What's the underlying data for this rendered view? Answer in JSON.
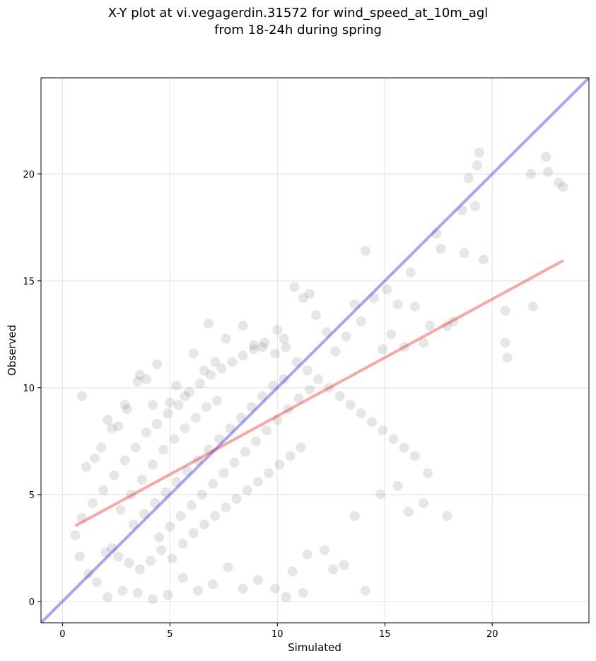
{
  "chart_data": {
    "type": "scatter",
    "title": "X-Y plot at vi.vegagerdin.31572 for wind_speed_at_10m_agl",
    "subtitle": "from 18-24h during spring",
    "xlabel": "Simulated",
    "ylabel": "Observed",
    "xlim": [
      -1,
      24.5
    ],
    "ylim": [
      -1,
      24.5
    ],
    "xticks": [
      0,
      5,
      10,
      15,
      20
    ],
    "yticks": [
      0,
      5,
      10,
      15,
      20
    ],
    "grid": true,
    "point_color": "#333333",
    "points": [
      [
        0.9,
        9.6
      ],
      [
        1.1,
        6.3
      ],
      [
        1.5,
        6.7
      ],
      [
        1.8,
        7.2
      ],
      [
        2.1,
        8.5
      ],
      [
        2.3,
        8.1
      ],
      [
        2.6,
        8.2
      ],
      [
        2.9,
        9.2
      ],
      [
        3.0,
        9.0
      ],
      [
        3.5,
        10.3
      ],
      [
        3.6,
        10.6
      ],
      [
        3.9,
        10.4
      ],
      [
        4.2,
        9.2
      ],
      [
        4.4,
        11.1
      ],
      [
        5.0,
        9.3
      ],
      [
        5.3,
        10.1
      ],
      [
        5.7,
        9.6
      ],
      [
        6.1,
        11.6
      ],
      [
        6.6,
        10.8
      ],
      [
        6.8,
        13.0
      ],
      [
        7.1,
        11.2
      ],
      [
        7.6,
        12.3
      ],
      [
        8.4,
        12.9
      ],
      [
        8.9,
        12.0
      ],
      [
        9.3,
        11.9
      ],
      [
        10.0,
        12.7
      ],
      [
        10.3,
        12.3
      ],
      [
        10.8,
        14.7
      ],
      [
        11.2,
        14.2
      ],
      [
        11.5,
        14.4
      ],
      [
        11.8,
        13.4
      ],
      [
        12.3,
        12.6
      ],
      [
        12.7,
        11.7
      ],
      [
        13.2,
        12.4
      ],
      [
        13.6,
        13.9
      ],
      [
        13.9,
        13.1
      ],
      [
        14.1,
        16.4
      ],
      [
        14.5,
        14.2
      ],
      [
        14.9,
        11.8
      ],
      [
        15.1,
        14.6
      ],
      [
        15.3,
        12.5
      ],
      [
        15.6,
        13.9
      ],
      [
        15.9,
        11.9
      ],
      [
        16.2,
        15.4
      ],
      [
        16.4,
        13.8
      ],
      [
        16.8,
        12.1
      ],
      [
        17.1,
        12.9
      ],
      [
        17.4,
        17.2
      ],
      [
        17.6,
        16.5
      ],
      [
        17.9,
        12.9
      ],
      [
        18.2,
        13.1
      ],
      [
        18.6,
        18.3
      ],
      [
        18.7,
        16.3
      ],
      [
        18.9,
        19.8
      ],
      [
        19.2,
        18.5
      ],
      [
        19.3,
        20.4
      ],
      [
        19.4,
        21.0
      ],
      [
        19.6,
        16.0
      ],
      [
        20.6,
        13.6
      ],
      [
        20.6,
        12.1
      ],
      [
        20.7,
        11.4
      ],
      [
        21.8,
        20.0
      ],
      [
        21.9,
        13.8
      ],
      [
        22.5,
        20.8
      ],
      [
        22.6,
        20.1
      ],
      [
        23.1,
        19.6
      ],
      [
        23.3,
        19.4
      ],
      [
        14.1,
        0.5
      ],
      [
        11.2,
        0.4
      ],
      [
        10.4,
        0.2
      ],
      [
        16.1,
        4.2
      ],
      [
        17.0,
        6.0
      ],
      [
        17.9,
        4.0
      ],
      [
        16.8,
        4.6
      ],
      [
        15.6,
        5.4
      ],
      [
        14.8,
        5.0
      ],
      [
        13.6,
        4.0
      ],
      [
        13.1,
        1.7
      ],
      [
        12.6,
        1.5
      ],
      [
        12.2,
        2.4
      ],
      [
        11.4,
        2.2
      ],
      [
        10.7,
        1.4
      ],
      [
        9.9,
        0.6
      ],
      [
        9.1,
        1.0
      ],
      [
        8.4,
        0.6
      ],
      [
        7.7,
        1.6
      ],
      [
        7.0,
        0.8
      ],
      [
        6.3,
        0.5
      ],
      [
        5.6,
        1.1
      ],
      [
        4.9,
        0.3
      ],
      [
        4.2,
        0.1
      ],
      [
        3.5,
        0.4
      ],
      [
        2.8,
        0.5
      ],
      [
        2.1,
        0.2
      ],
      [
        1.6,
        0.9
      ],
      [
        1.2,
        1.3
      ],
      [
        0.8,
        2.1
      ],
      [
        0.6,
        3.1
      ],
      [
        0.9,
        3.9
      ],
      [
        1.4,
        4.6
      ],
      [
        1.9,
        5.2
      ],
      [
        2.4,
        5.9
      ],
      [
        2.9,
        6.6
      ],
      [
        3.4,
        7.2
      ],
      [
        3.9,
        7.9
      ],
      [
        4.4,
        8.3
      ],
      [
        4.9,
        8.8
      ],
      [
        5.4,
        9.2
      ],
      [
        5.9,
        9.8
      ],
      [
        6.4,
        10.2
      ],
      [
        6.9,
        10.6
      ],
      [
        7.4,
        10.9
      ],
      [
        7.9,
        11.2
      ],
      [
        8.4,
        11.5
      ],
      [
        8.9,
        11.8
      ],
      [
        9.4,
        12.1
      ],
      [
        9.9,
        11.6
      ],
      [
        10.4,
        11.9
      ],
      [
        10.9,
        11.2
      ],
      [
        11.4,
        10.8
      ],
      [
        11.9,
        10.4
      ],
      [
        12.4,
        10.0
      ],
      [
        12.9,
        9.6
      ],
      [
        13.4,
        9.2
      ],
      [
        13.9,
        8.8
      ],
      [
        14.4,
        8.4
      ],
      [
        14.9,
        8.0
      ],
      [
        15.4,
        7.6
      ],
      [
        15.9,
        7.2
      ],
      [
        16.4,
        6.8
      ],
      [
        2.0,
        2.3
      ],
      [
        2.3,
        2.5
      ],
      [
        2.6,
        2.1
      ],
      [
        3.1,
        1.8
      ],
      [
        3.6,
        1.5
      ],
      [
        4.1,
        1.9
      ],
      [
        4.6,
        2.4
      ],
      [
        5.1,
        2.0
      ],
      [
        5.6,
        2.7
      ],
      [
        6.1,
        3.2
      ],
      [
        6.6,
        3.6
      ],
      [
        7.1,
        4.0
      ],
      [
        7.6,
        4.4
      ],
      [
        8.1,
        4.8
      ],
      [
        8.6,
        5.2
      ],
      [
        9.1,
        5.6
      ],
      [
        9.6,
        6.0
      ],
      [
        10.1,
        6.4
      ],
      [
        10.6,
        6.8
      ],
      [
        11.1,
        7.2
      ],
      [
        3.3,
        3.6
      ],
      [
        3.8,
        4.1
      ],
      [
        4.3,
        4.6
      ],
      [
        4.8,
        5.1
      ],
      [
        5.3,
        5.6
      ],
      [
        5.8,
        6.1
      ],
      [
        6.3,
        6.6
      ],
      [
        6.8,
        7.1
      ],
      [
        7.3,
        7.6
      ],
      [
        7.8,
        8.1
      ],
      [
        8.3,
        8.6
      ],
      [
        8.8,
        9.1
      ],
      [
        9.3,
        9.6
      ],
      [
        9.8,
        10.1
      ],
      [
        10.3,
        10.4
      ],
      [
        2.7,
        4.3
      ],
      [
        3.2,
        5.0
      ],
      [
        3.7,
        5.7
      ],
      [
        4.2,
        6.4
      ],
      [
        4.7,
        7.1
      ],
      [
        5.2,
        7.6
      ],
      [
        5.7,
        8.1
      ],
      [
        6.2,
        8.6
      ],
      [
        6.7,
        9.1
      ],
      [
        7.2,
        9.4
      ],
      [
        4.5,
        3.0
      ],
      [
        5.0,
        3.5
      ],
      [
        5.5,
        4.0
      ],
      [
        6.0,
        4.5
      ],
      [
        6.5,
        5.0
      ],
      [
        7.0,
        5.5
      ],
      [
        7.5,
        6.0
      ],
      [
        8.0,
        6.5
      ],
      [
        8.5,
        7.0
      ],
      [
        9.0,
        7.5
      ],
      [
        9.5,
        8.0
      ],
      [
        10.0,
        8.5
      ],
      [
        10.5,
        9.0
      ],
      [
        11.0,
        9.5
      ],
      [
        11.5,
        9.9
      ]
    ]
  }
}
